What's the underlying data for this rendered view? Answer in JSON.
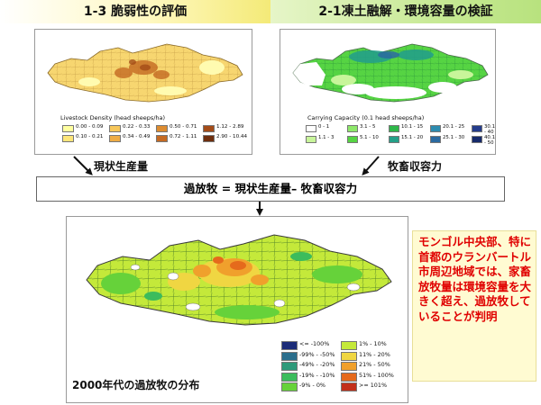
{
  "header": {
    "left_title": "1-3 脆弱性の評価",
    "right_title": "2-1凍土融解・環境容量の検証"
  },
  "panel_livestock": {
    "legend_title": "Livestock Density (head sheeps/ha)",
    "classes": [
      {
        "label": "0.00 - 0.09",
        "color": "#ffffa0"
      },
      {
        "label": "0.10 - 0.21",
        "color": "#fde67a"
      },
      {
        "label": "0.22 - 0.33",
        "color": "#f7c75a"
      },
      {
        "label": "0.34 - 0.49",
        "color": "#eeac44"
      },
      {
        "label": "0.50 - 0.71",
        "color": "#dd8c30"
      },
      {
        "label": "0.72 - 1.11",
        "color": "#c56a22"
      },
      {
        "label": "1.12 - 2.89",
        "color": "#a44c18"
      },
      {
        "label": "2.90 - 10.44",
        "color": "#6e2e0e"
      }
    ]
  },
  "panel_capacity": {
    "legend_title": "Carrying Capacity (0.1 head sheeps/ha)",
    "classes": [
      {
        "label": "0 - 1",
        "color": "#ffffff"
      },
      {
        "label": "1.1 - 3",
        "color": "#c8f59a"
      },
      {
        "label": "3.1 - 5",
        "color": "#8ee86a"
      },
      {
        "label": "5.1 - 10",
        "color": "#56d443"
      },
      {
        "label": "10.1 - 15",
        "color": "#2fb84a"
      },
      {
        "label": "15.1 - 20",
        "color": "#24a088"
      },
      {
        "label": "20.1 - 25",
        "color": "#2d8cb0"
      },
      {
        "label": "25.1 - 30",
        "color": "#2a6aa0"
      },
      {
        "label": "30.1 - 40",
        "color": "#243c8c"
      },
      {
        "label": "40.1 - 50",
        "color": "#162a6a"
      }
    ]
  },
  "labels": {
    "current_production": "現状生産量",
    "carrying_capacity": "牧畜収容力",
    "formula": "過放牧 = 現状生産量– 牧畜収容力"
  },
  "panel_overgrazing": {
    "caption": "2000年代の過放牧の分布",
    "classes": [
      {
        "label": "<= -100%",
        "color": "#1c2c78"
      },
      {
        "label": "-99% - -50%",
        "color": "#2a6e8c"
      },
      {
        "label": "-49% - -20%",
        "color": "#2e9a7a"
      },
      {
        "label": "-19% - -10%",
        "color": "#3cbc5c"
      },
      {
        "label": "-9% - 0%",
        "color": "#66d23a"
      },
      {
        "label": "1% - 10%",
        "color": "#c4e93a"
      },
      {
        "label": "11% - 20%",
        "color": "#f0d642"
      },
      {
        "label": "21% - 50%",
        "color": "#f0a02c"
      },
      {
        "label": "51% - 100%",
        "color": "#e56a1c"
      },
      {
        "label": ">= 101%",
        "color": "#c2301a"
      }
    ]
  },
  "note": {
    "text": "モンゴル中央部、特に首都のウランバートル市周辺地域では、家畜放牧量は環境容量を大きく超え、過放牧していることが判明"
  }
}
